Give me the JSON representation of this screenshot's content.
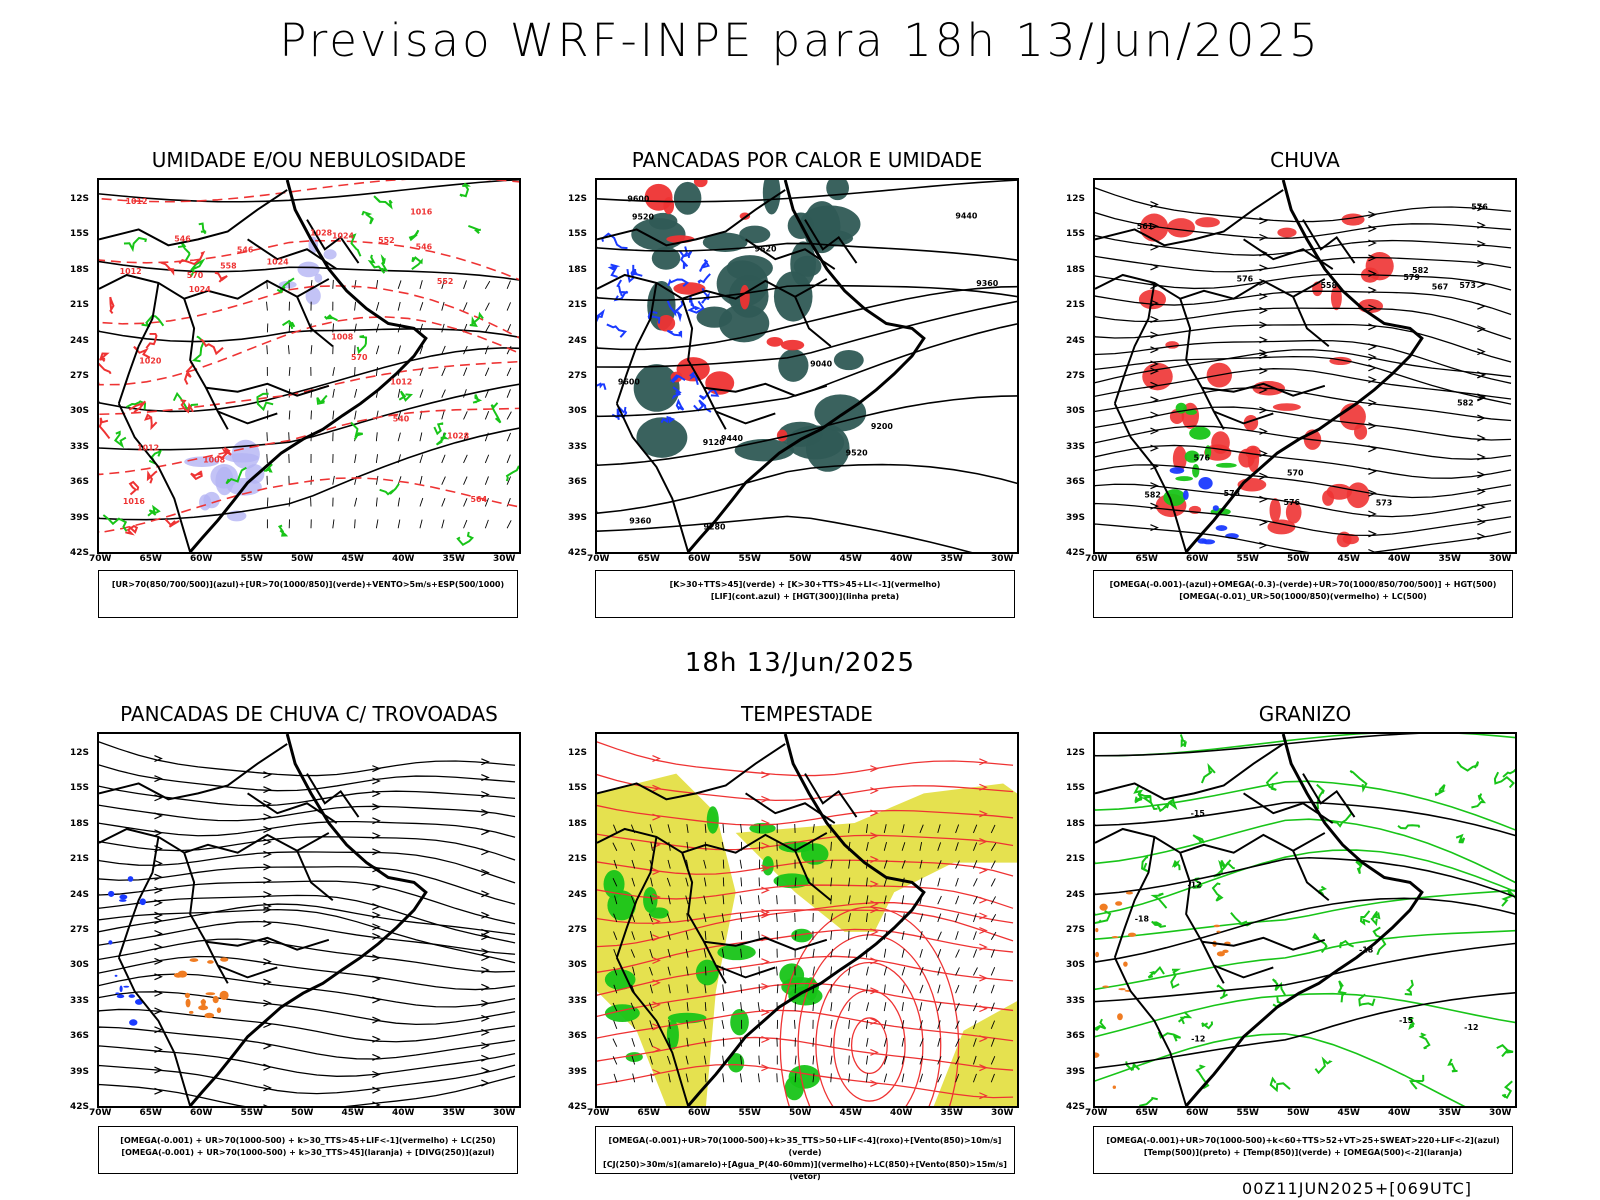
{
  "header": {
    "title": "Previsao WRF-INPE  para 18h 13/Jun/2025"
  },
  "mid_title": "18h 13/Jun/2025",
  "footer": {
    "run": "00Z11JUN2025+[069UTC]"
  },
  "axes": {
    "lat_ticks": [
      "12S",
      "15S",
      "18S",
      "21S",
      "24S",
      "27S",
      "30S",
      "33S",
      "36S",
      "39S",
      "42S"
    ],
    "lon_ticks": [
      "70W",
      "65W",
      "60W",
      "55W",
      "50W",
      "45W",
      "40W",
      "35W",
      "30W"
    ]
  },
  "colors": {
    "red": "#ee3333",
    "green": "#18c418",
    "blue": "#1a3aff",
    "lavender": "#b4b4f4",
    "teal": "#2f5a55",
    "yellow": "#e0dc30",
    "orange": "#f07c22"
  },
  "panels": [
    {
      "title": "UMIDADE E/OU NEBULOSIDADE",
      "legend": [
        "[UR>70(850/700/500)](azul)+[UR>70(1000/850)](verde)+VENTO>5m/s+ESP(500/1000)"
      ],
      "labels": [
        "1012",
        "1008",
        "1020",
        "1024",
        "1024",
        "1012",
        "1016",
        "1008",
        "1024",
        "1028",
        "1012",
        "1016",
        "1028",
        "1012",
        "570",
        "558",
        "552",
        "546",
        "564",
        "570",
        "552",
        "546",
        "540",
        "546"
      ]
    },
    {
      "title": "PANCADAS POR CALOR E UMIDADE",
      "legend": [
        "[K>30+TTS>45](verde)  +  [K>30+TTS>45+LI<-1](vermelho)",
        "[LIF](cont.azul)  +  [HGT(300)](linha preta)"
      ],
      "labels": [
        "9520",
        "9600",
        "9600",
        "9440",
        "9360",
        "9520",
        "9520",
        "9440",
        "9360",
        "9200",
        "9120",
        "9040",
        "9280"
      ]
    },
    {
      "title": "CHUVA",
      "legend": [
        "[OMEGA(-0.001)-(azul)+OMEGA(-0.3)-(verde)+UR>70(1000/850/700/500)]  +  HGT(500)",
        "[OMEGA(-0.01)_UR>50(1000/850)(vermelho)  +  LC(500)"
      ],
      "labels": [
        "582",
        "582",
        "582",
        "576",
        "579",
        "576",
        "573",
        "576",
        "570",
        "567",
        "573",
        "561",
        "558",
        "576",
        "573"
      ]
    },
    {
      "title": "PANCADAS DE CHUVA C/ TROVOADAS",
      "legend": [
        "[OMEGA(-0.001) + UR>70(1000-500) + k>30_TTS>45+LIF<-1](vermelho) + LC(250)",
        "[OMEGA(-0.001) + UR>70(1000-500) + k>30_TTS>45](laranja) + [DIVG(250)](azul)"
      ],
      "labels": []
    },
    {
      "title": "TEMPESTADE",
      "legend": [
        "[OMEGA(-0.001)+UR>70(1000-500)+k>35_TTS>50+LIF<-4](roxo)+[Vento(850)>10m/s](verde)",
        "[CJ(250)>30m/s](amarelo)+[Agua_P(40-60mm)](vermelho)+LC(850)+[Vento(850)>15m/s](vetor)"
      ],
      "labels": []
    },
    {
      "title": "GRANIZO",
      "legend": [
        "[OMEGA(-0.001)+UR>70(1000-500)+k<60+TTS>52+VT>25+SWEAT>220+LIF<-2](azul)",
        "[Temp(500)](preto) + [Temp(850)](verde) + [OMEGA(500)<-2](laranja)"
      ],
      "labels": [
        "-12",
        "-12",
        "-15",
        "-18",
        "-15",
        "-12",
        "-18"
      ]
    }
  ]
}
